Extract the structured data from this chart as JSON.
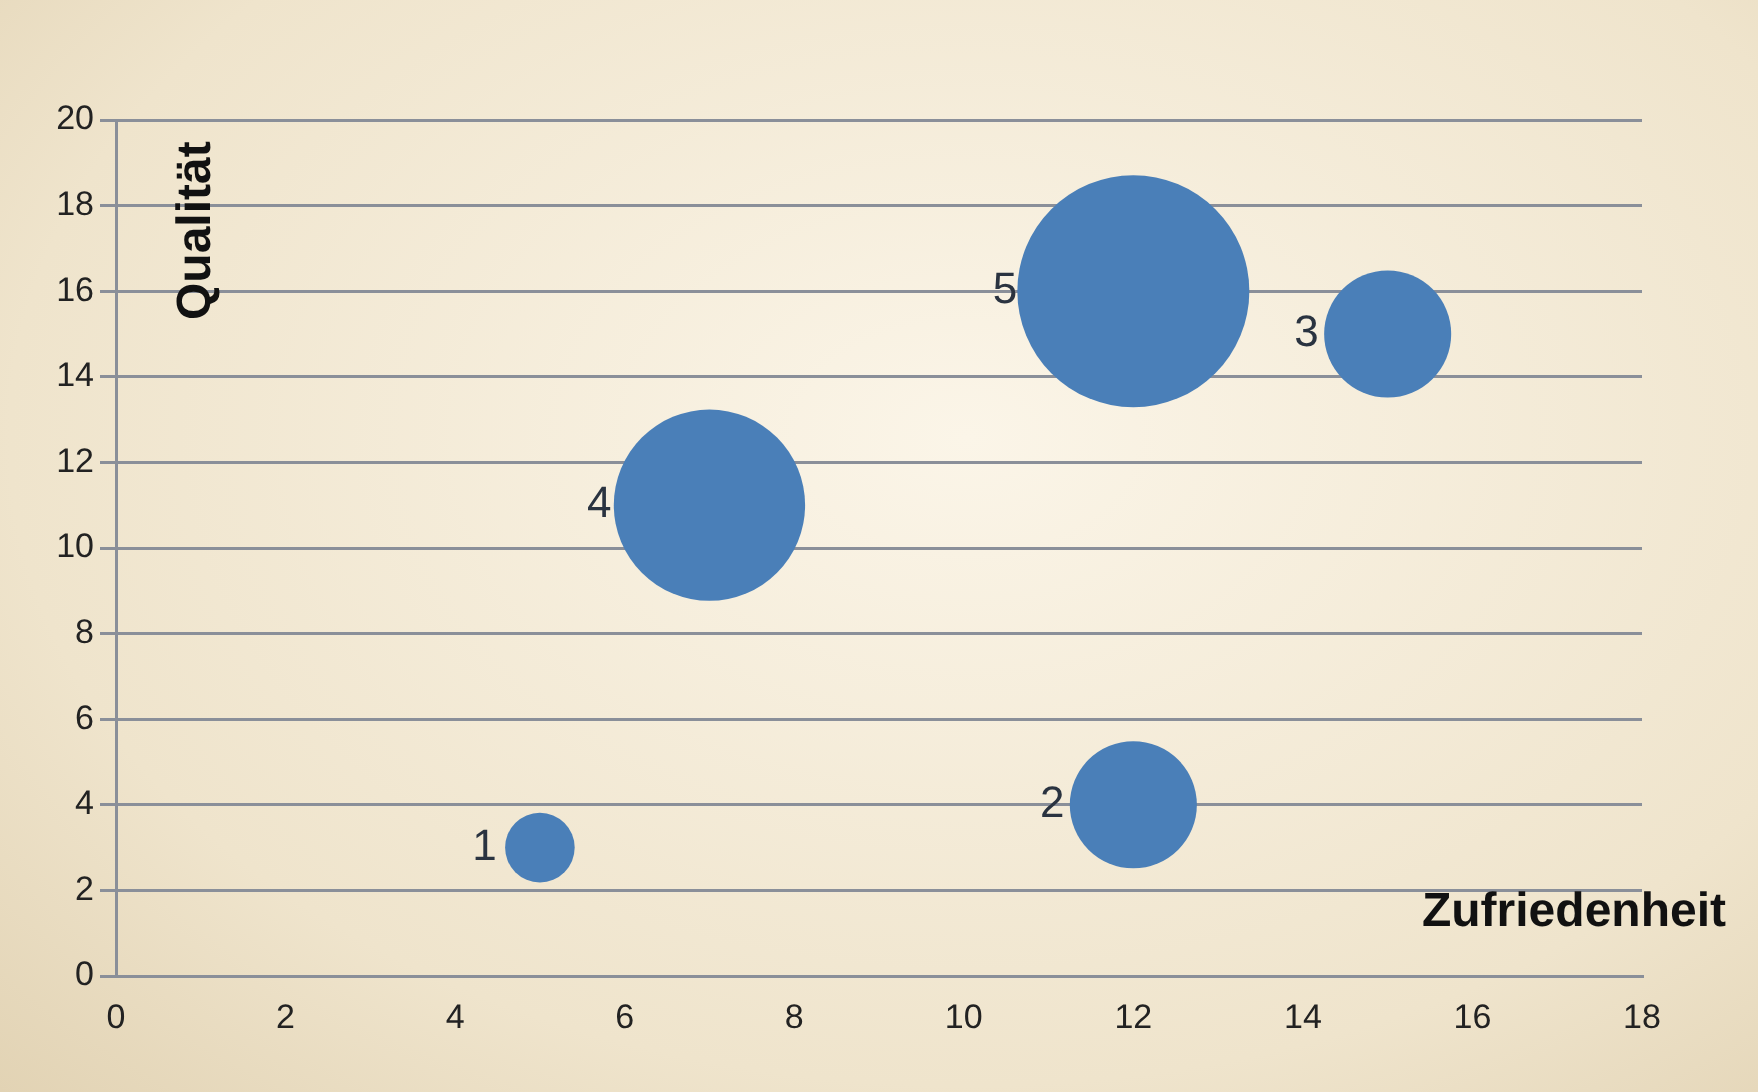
{
  "chart_data": {
    "type": "bubble",
    "xlabel": "Zufriedenheit",
    "ylabel": "Qualität",
    "x": [
      5,
      12,
      15,
      7,
      12
    ],
    "values": [
      3,
      4,
      15,
      11,
      16
    ],
    "sizes": [
      0.09,
      0.3,
      0.3,
      0.68,
      1
    ],
    "color": "#4a7fb8",
    "xlim": [
      0,
      18
    ],
    "xticks": [
      0,
      2,
      4,
      6,
      8,
      10,
      12,
      14,
      16,
      18
    ],
    "ylim": [
      0,
      20
    ],
    "yticks": [
      0,
      2,
      4,
      6,
      8,
      10,
      12,
      14,
      16,
      18,
      20
    ],
    "grid": "y",
    "annotations": [
      {
        "text": "1",
        "x": 5,
        "y": 3
      },
      {
        "text": "2",
        "x": 12,
        "y": 4
      },
      {
        "text": "3",
        "x": 15,
        "y": 15
      },
      {
        "text": "4",
        "x": 7,
        "y": 11
      },
      {
        "text": "5",
        "x": 12,
        "y": 16
      }
    ]
  }
}
